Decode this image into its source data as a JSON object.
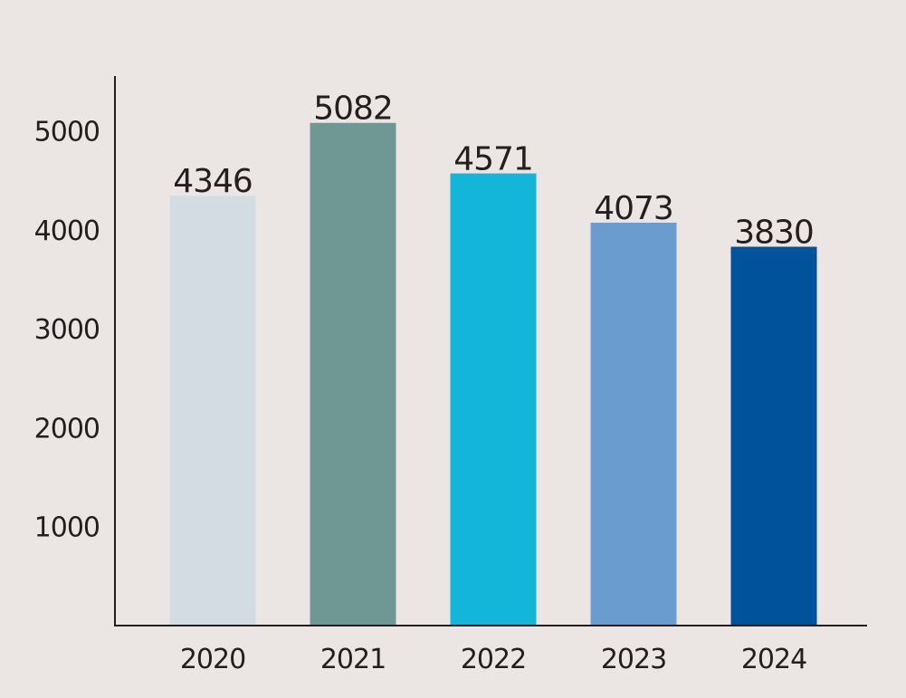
{
  "chart_data": {
    "type": "bar",
    "title": "",
    "xlabel": "",
    "ylabel": "",
    "categories": [
      "2020",
      "2021",
      "2022",
      "2023",
      "2024"
    ],
    "values": [
      4346,
      5082,
      4571,
      4073,
      3830
    ],
    "colors": [
      "#d4dce3",
      "#6f9794",
      "#13b5d8",
      "#6a9ccf",
      "#00529a"
    ],
    "ylim": [
      0,
      5400
    ],
    "yticks": [
      1000,
      2000,
      3000,
      4000,
      5000
    ],
    "ytick_labels": [
      "1000",
      "2000",
      "3000",
      "4000",
      "5000"
    ],
    "data_labels": [
      "4346",
      "5082",
      "4571",
      "4073",
      "3830"
    ],
    "grid": false,
    "legend": "none",
    "background": "#ebe6e3"
  }
}
